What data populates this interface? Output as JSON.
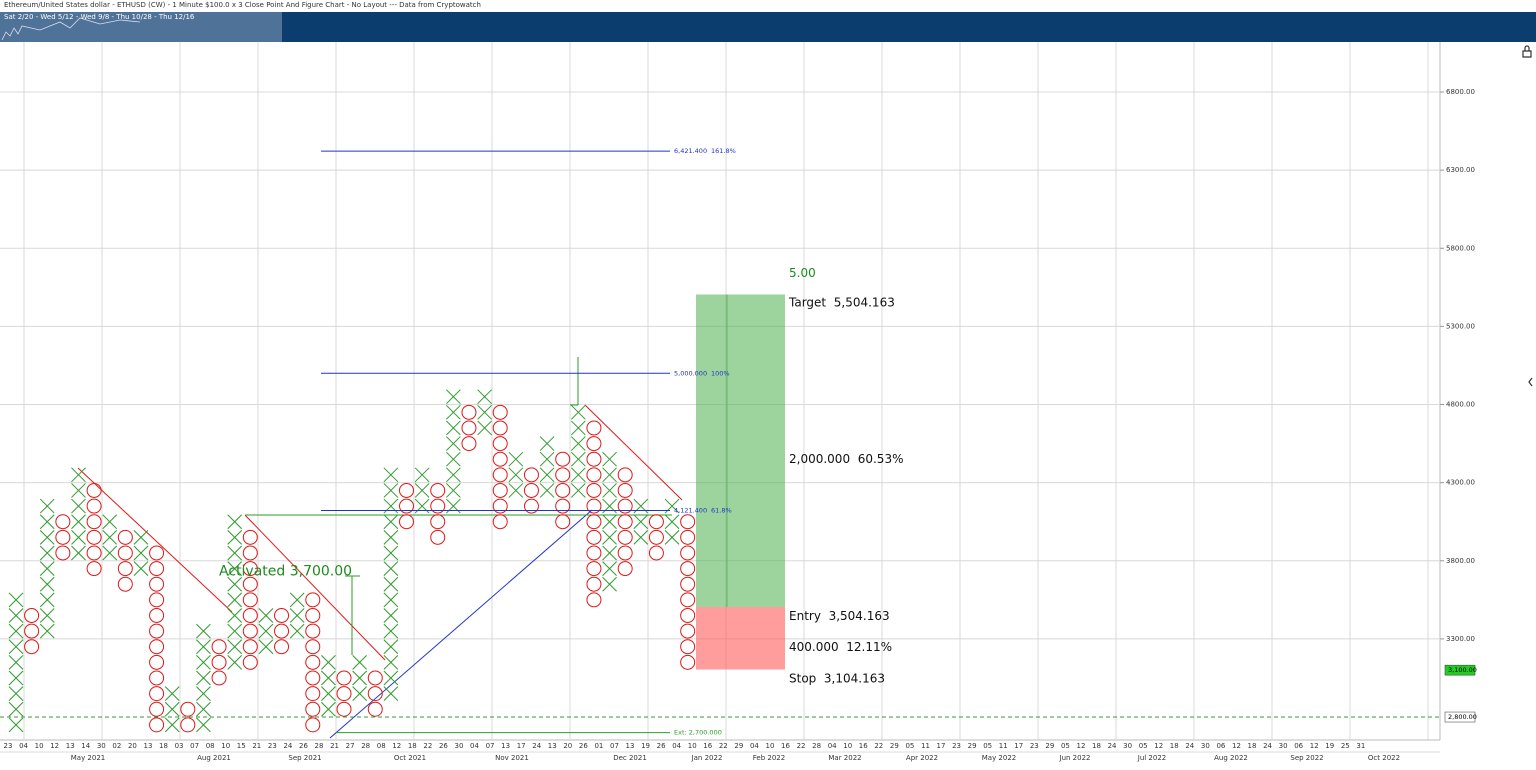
{
  "chart_data": {
    "type": "point-and-figure",
    "title": "Ethereum/United States dollar - ETHUSD (CW) - 1 Minute $100.0 x 3 Close Point And Figure Chart - No Layout --- Data from Cryptowatch",
    "navigator_label": "Sat 2/20 - Wed 5/12 - Wed 9/8 - Thu 10/28 - Thu 12/16",
    "box_size": 100,
    "columns": [
      {
        "kind": "X",
        "low": 2700,
        "high": 3600
      },
      {
        "kind": "O",
        "low": 3200,
        "high": 3500
      },
      {
        "kind": "X",
        "low": 3300,
        "high": 4200
      },
      {
        "kind": "O",
        "low": 3800,
        "high": 4100
      },
      {
        "kind": "X",
        "low": 3800,
        "high": 4400
      },
      {
        "kind": "O",
        "low": 3700,
        "high": 4300
      },
      {
        "kind": "X",
        "low": 3800,
        "high": 4100
      },
      {
        "kind": "O",
        "low": 3600,
        "high": 4000
      },
      {
        "kind": "X",
        "low": 3700,
        "high": 4000
      },
      {
        "kind": "O",
        "low": 2700,
        "high": 3900
      },
      {
        "kind": "X",
        "low": 2700,
        "high": 3000
      },
      {
        "kind": "O",
        "low": 2700,
        "high": 2900
      },
      {
        "kind": "X",
        "low": 2700,
        "high": 3400
      },
      {
        "kind": "O",
        "low": 3000,
        "high": 3300
      },
      {
        "kind": "X",
        "low": 3100,
        "high": 4100
      },
      {
        "kind": "O",
        "low": 3100,
        "high": 4000
      },
      {
        "kind": "X",
        "low": 3200,
        "high": 3500
      },
      {
        "kind": "O",
        "low": 3200,
        "high": 3500
      },
      {
        "kind": "X",
        "low": 3300,
        "high": 3600
      },
      {
        "kind": "O",
        "low": 2700,
        "high": 3600
      },
      {
        "kind": "X",
        "low": 2800,
        "high": 3200
      },
      {
        "kind": "O",
        "low": 2800,
        "high": 3100
      },
      {
        "kind": "X",
        "low": 2900,
        "high": 3200
      },
      {
        "kind": "O",
        "low": 2800,
        "high": 3100
      },
      {
        "kind": "X",
        "low": 2900,
        "high": 4400
      },
      {
        "kind": "O",
        "low": 4000,
        "high": 4300
      },
      {
        "kind": "X",
        "low": 4100,
        "high": 4400
      },
      {
        "kind": "O",
        "low": 3900,
        "high": 4300
      },
      {
        "kind": "X",
        "low": 4100,
        "high": 4900
      },
      {
        "kind": "O",
        "low": 4500,
        "high": 4800
      },
      {
        "kind": "X",
        "low": 4600,
        "high": 4900
      },
      {
        "kind": "O",
        "low": 4000,
        "high": 4800
      },
      {
        "kind": "X",
        "low": 4200,
        "high": 4500
      },
      {
        "kind": "O",
        "low": 4100,
        "high": 4400
      },
      {
        "kind": "X",
        "low": 4200,
        "high": 4600
      },
      {
        "kind": "O",
        "low": 4000,
        "high": 4500
      },
      {
        "kind": "X",
        "low": 4200,
        "high": 4800
      },
      {
        "kind": "O",
        "low": 3500,
        "high": 4700
      },
      {
        "kind": "X",
        "low": 3600,
        "high": 4500
      },
      {
        "kind": "O",
        "low": 3700,
        "high": 4400
      },
      {
        "kind": "X",
        "low": 3900,
        "high": 4200
      },
      {
        "kind": "O",
        "low": 3800,
        "high": 4100
      },
      {
        "kind": "X",
        "low": 3900,
        "high": 4200
      },
      {
        "kind": "O",
        "low": 3100,
        "high": 4100
      }
    ],
    "x_color": "#2e9b2e",
    "o_color": "#e01818",
    "ylim": [
      2653,
      7120
    ],
    "yticks": [
      {
        "value": 3300,
        "label": "3300.00"
      },
      {
        "value": 3800,
        "label": "3800.00"
      },
      {
        "value": 4300,
        "label": "4300.00"
      },
      {
        "value": 4800,
        "label": "4800.00"
      },
      {
        "value": 5300,
        "label": "5300.00"
      },
      {
        "value": 5800,
        "label": "5800.00"
      },
      {
        "value": 6300,
        "label": "6300.00"
      },
      {
        "value": 6800,
        "label": "6800.00"
      }
    ],
    "grid": true,
    "x_labels": [
      "23",
      "04",
      "10",
      "12",
      "13",
      "14",
      "30",
      "02",
      "20",
      "13",
      "18",
      "03",
      "07",
      "08",
      "10",
      "15",
      "21",
      "23",
      "24",
      "26",
      "28",
      "21",
      "27",
      "28",
      "08",
      "12",
      "18",
      "22",
      "26",
      "30",
      "04",
      "07",
      "13",
      "17",
      "24",
      "13",
      "20",
      "26",
      "01",
      "07",
      "13",
      "19",
      "26",
      "04",
      "10",
      "16",
      "22",
      "29",
      "04",
      "10",
      "16",
      "22",
      "28",
      "04",
      "10",
      "16",
      "22",
      "29",
      "05",
      "11",
      "17",
      "23",
      "29",
      "05",
      "11",
      "17",
      "23",
      "29",
      "05",
      "12",
      "18",
      "24",
      "30",
      "05",
      "12",
      "18",
      "24",
      "30",
      "06",
      "12",
      "18",
      "24",
      "30",
      "06",
      "12",
      "19",
      "25",
      "31"
    ],
    "months": [
      "May 2021",
      "Aug 2021",
      "Sep 2021",
      "Oct 2021",
      "Nov 2021",
      "Dec 2021",
      "Jan 2022",
      "Feb 2022",
      "Mar 2022",
      "Apr 2022",
      "May 2022",
      "Jun 2022",
      "Jul 2022",
      "Aug 2022",
      "Sep 2022",
      "Oct 2022"
    ],
    "fib_levels": [
      {
        "value": 6421.4,
        "label": "6,421.400",
        "pct": "161.8%"
      },
      {
        "value": 5000,
        "label": "5,000.000",
        "pct": "100%"
      },
      {
        "value": 4121.4,
        "label": "4,121.400",
        "pct": "61.8%"
      }
    ],
    "extension": {
      "value": 2700,
      "label": "Ext: 2,700.000"
    },
    "activated": {
      "label": "Activated",
      "value": 3700,
      "value_label": "3,700.00"
    },
    "price_labels": [
      {
        "value": 3100,
        "label": "3,100.00",
        "color": "#22cc22"
      },
      {
        "value": 2800,
        "label": "2,800.00",
        "color": "#ffffff"
      }
    ],
    "position": {
      "ratio": "5.00",
      "target": {
        "label": "Target",
        "value": 5504.163,
        "value_label": "5,504.163"
      },
      "entry": {
        "label": "Entry",
        "value": 3504.163,
        "value_label": "3,504.163"
      },
      "stop": {
        "label": "Stop",
        "value": 3104.163,
        "value_label": "3,104.163"
      },
      "reward": {
        "amount": "2,000.000",
        "pct": "60.53%"
      },
      "risk": {
        "amount": "400.000",
        "pct": "12.11%"
      }
    }
  }
}
